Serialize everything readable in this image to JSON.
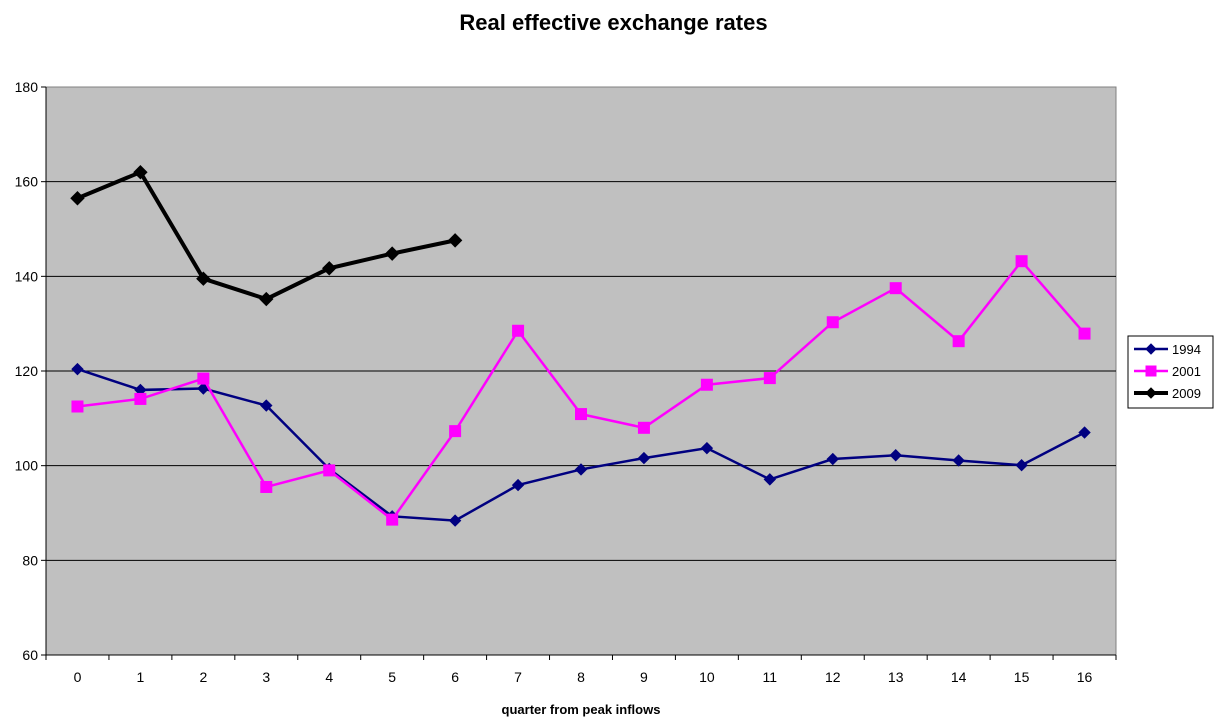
{
  "chart_data": {
    "type": "line",
    "title": "Real effective exchange rates",
    "xlabel": "quarter from peak inflows",
    "ylabel": "",
    "categories": [
      "0",
      "1",
      "2",
      "3",
      "4",
      "5",
      "6",
      "7",
      "8",
      "9",
      "10",
      "11",
      "12",
      "13",
      "14",
      "15",
      "16"
    ],
    "ylim": [
      60,
      180
    ],
    "yticks": [
      60,
      80,
      100,
      120,
      140,
      160,
      180
    ],
    "grid": true,
    "legend_position": "right",
    "plot_background": "#c0c0c0",
    "series": [
      {
        "name": "1994",
        "color": "#000080",
        "marker": "diamond",
        "values": [
          120.4,
          116.0,
          116.3,
          112.7,
          99.3,
          89.3,
          88.4,
          95.9,
          99.2,
          101.6,
          103.7,
          97.1,
          101.4,
          102.2,
          101.1,
          100.1,
          107.0
        ]
      },
      {
        "name": "2001",
        "color": "#ff00ff",
        "marker": "square",
        "values": [
          112.5,
          114.1,
          118.4,
          95.5,
          99.0,
          88.6,
          107.3,
          128.5,
          110.9,
          108.0,
          117.1,
          118.5,
          130.3,
          137.5,
          126.3,
          143.2,
          127.9
        ]
      },
      {
        "name": "2009",
        "color": "#000000",
        "marker": "diamond",
        "values": [
          156.5,
          162.0,
          139.5,
          135.2,
          141.7,
          144.8,
          147.6,
          null,
          null,
          null,
          null,
          null,
          null,
          null,
          null,
          null,
          null
        ]
      }
    ]
  }
}
